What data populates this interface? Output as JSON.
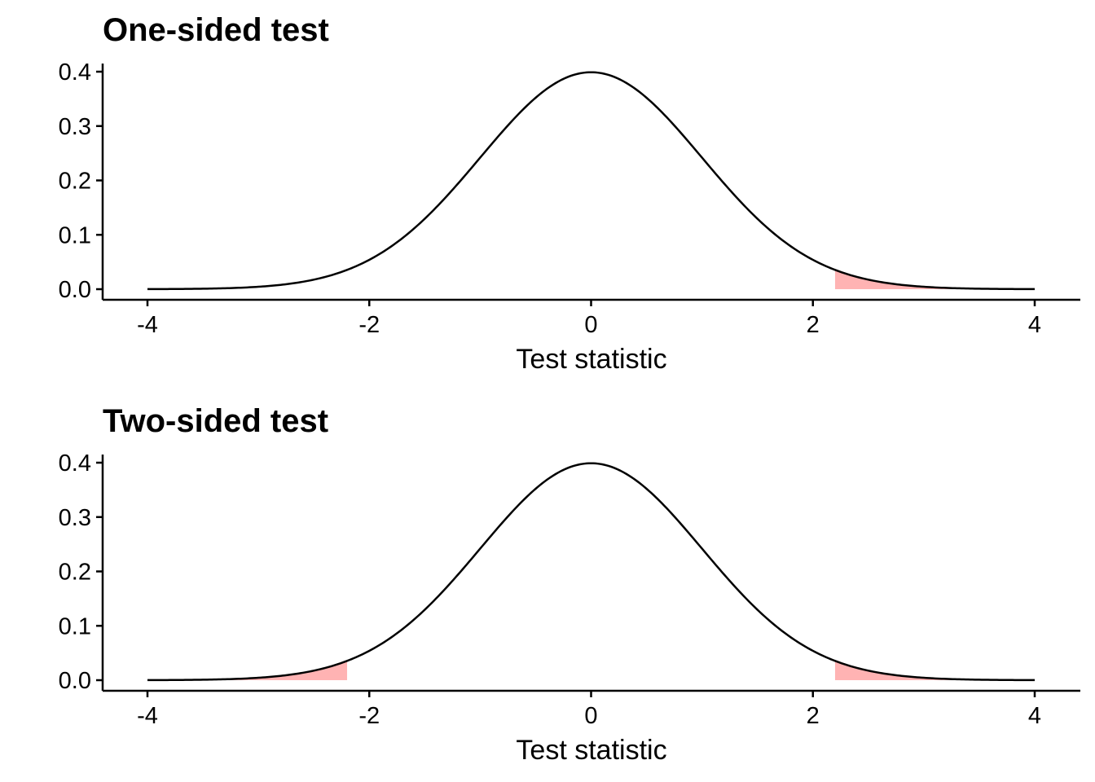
{
  "chart_data": [
    {
      "type": "area",
      "title": "One-sided test",
      "xlabel": "Test statistic",
      "ylabel": "",
      "xlim": [
        -4,
        4
      ],
      "ylim": [
        0,
        0.4
      ],
      "x_ticks": [
        -4,
        -2,
        0,
        2,
        4
      ],
      "x_tick_labels": [
        "-4",
        "-2",
        "0",
        "2",
        "4"
      ],
      "y_ticks": [
        0.0,
        0.1,
        0.2,
        0.3,
        0.4
      ],
      "y_tick_labels": [
        "0.0",
        "0.1",
        "0.2",
        "0.3",
        "0.4"
      ],
      "grid": false,
      "curve": "standard normal density",
      "x": [
        -4,
        -3.5,
        -3,
        -2.5,
        -2.2,
        -2,
        -1.5,
        -1,
        -0.5,
        0,
        0.5,
        1,
        1.5,
        2,
        2.2,
        2.5,
        3,
        3.5,
        4
      ],
      "y": [
        0.0001,
        0.0009,
        0.0044,
        0.0175,
        0.0355,
        0.054,
        0.1295,
        0.242,
        0.3521,
        0.3989,
        0.3521,
        0.242,
        0.1295,
        0.054,
        0.0355,
        0.0175,
        0.0044,
        0.0009,
        0.0001
      ],
      "shaded_regions": [
        [
          2.2,
          4
        ]
      ],
      "shade_color": "#ffb3b3",
      "line_color": "#000000"
    },
    {
      "type": "area",
      "title": "Two-sided test",
      "xlabel": "Test statistic",
      "ylabel": "",
      "xlim": [
        -4,
        4
      ],
      "ylim": [
        0,
        0.4
      ],
      "x_ticks": [
        -4,
        -2,
        0,
        2,
        4
      ],
      "x_tick_labels": [
        "-4",
        "-2",
        "0",
        "2",
        "4"
      ],
      "y_ticks": [
        0.0,
        0.1,
        0.2,
        0.3,
        0.4
      ],
      "y_tick_labels": [
        "0.0",
        "0.1",
        "0.2",
        "0.3",
        "0.4"
      ],
      "grid": false,
      "curve": "standard normal density",
      "x": [
        -4,
        -3.5,
        -3,
        -2.5,
        -2.2,
        -2,
        -1.5,
        -1,
        -0.5,
        0,
        0.5,
        1,
        1.5,
        2,
        2.2,
        2.5,
        3,
        3.5,
        4
      ],
      "y": [
        0.0001,
        0.0009,
        0.0044,
        0.0175,
        0.0355,
        0.054,
        0.1295,
        0.242,
        0.3521,
        0.3989,
        0.3521,
        0.242,
        0.1295,
        0.054,
        0.0355,
        0.0175,
        0.0044,
        0.0009,
        0.0001
      ],
      "shaded_regions": [
        [
          -4,
          -2.2
        ],
        [
          2.2,
          4
        ]
      ],
      "shade_color": "#ffb3b3",
      "line_color": "#000000"
    }
  ]
}
